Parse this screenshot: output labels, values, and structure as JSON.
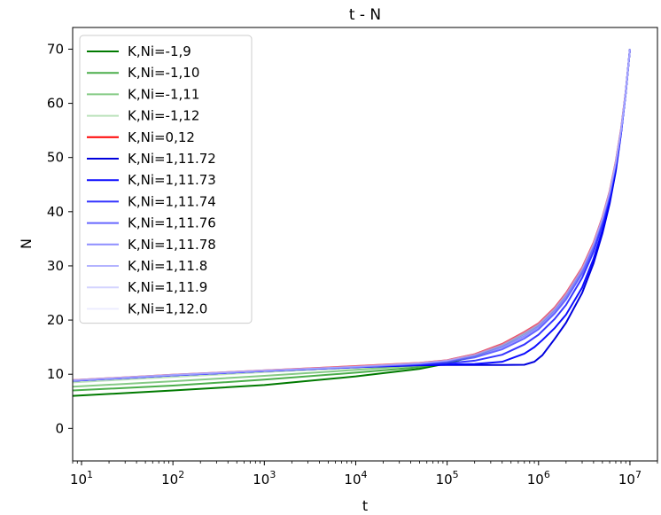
{
  "chart_data": {
    "type": "line",
    "title": "t - N",
    "xlabel": "t",
    "ylabel": "N",
    "xscale": "log",
    "xlim": [
      8,
      20000000
    ],
    "ylim": [
      -6,
      74
    ],
    "x_ticks": [
      10,
      100,
      1000,
      10000,
      100000,
      1000000,
      10000000
    ],
    "x_tick_exponents": [
      "1",
      "2",
      "3",
      "4",
      "5",
      "6",
      "7"
    ],
    "y_ticks": [
      0,
      10,
      20,
      30,
      40,
      50,
      60,
      70
    ],
    "legend_position": "upper-left",
    "grid": false,
    "series": [
      {
        "name": "K,Ni=-1,9",
        "color": "#007a00",
        "opacity": 1.0,
        "x": [
          8,
          100,
          1000,
          10000,
          50000,
          100000,
          200000,
          400000,
          700000,
          1000000,
          1500000,
          2000000,
          3000000,
          4000000,
          5000000,
          6000000,
          7000000,
          8000000,
          9000000,
          10000000
        ],
        "y": [
          6.0,
          7.0,
          8.0,
          9.6,
          11.0,
          12.0,
          13.4,
          15.3,
          17.5,
          19.1,
          22.0,
          24.7,
          29.4,
          34.0,
          38.7,
          43.5,
          49.0,
          55.0,
          62.0,
          70.0
        ]
      },
      {
        "name": "K,Ni=-1,10",
        "color": "#2ca02c",
        "opacity": 0.85,
        "x": [
          8,
          100,
          1000,
          10000,
          50000,
          100000,
          200000,
          400000,
          700000,
          1000000,
          1500000,
          2000000,
          3000000,
          4000000,
          5000000,
          6000000,
          7000000,
          8000000,
          9000000,
          10000000
        ],
        "y": [
          7.0,
          7.9,
          9.0,
          10.3,
          11.3,
          12.1,
          13.4,
          15.3,
          17.5,
          19.1,
          22.0,
          24.7,
          29.4,
          34.0,
          38.7,
          43.5,
          49.0,
          55.0,
          62.0,
          70.0
        ]
      },
      {
        "name": "K,Ni=-1,11",
        "color": "#5cb85c",
        "opacity": 0.75,
        "x": [
          8,
          100,
          1000,
          10000,
          50000,
          100000,
          200000,
          400000,
          700000,
          1000000,
          1500000,
          2000000,
          3000000,
          4000000,
          5000000,
          6000000,
          7000000,
          8000000,
          9000000,
          10000000
        ],
        "y": [
          7.7,
          8.7,
          9.7,
          10.8,
          11.6,
          12.2,
          13.4,
          15.3,
          17.5,
          19.1,
          22.0,
          24.7,
          29.4,
          34.0,
          38.7,
          43.5,
          49.0,
          55.0,
          62.0,
          70.0
        ]
      },
      {
        "name": "K,Ni=-1,12",
        "color": "#9fd69f",
        "opacity": 0.7,
        "x": [
          8,
          100,
          1000,
          10000,
          50000,
          100000,
          200000,
          400000,
          700000,
          1000000,
          1500000,
          2000000,
          3000000,
          4000000,
          5000000,
          6000000,
          7000000,
          8000000,
          9000000,
          10000000
        ],
        "y": [
          8.5,
          9.5,
          10.4,
          11.2,
          11.8,
          12.3,
          13.4,
          15.3,
          17.5,
          19.1,
          22.0,
          24.7,
          29.4,
          34.0,
          38.7,
          43.5,
          49.0,
          55.0,
          62.0,
          70.0
        ]
      },
      {
        "name": "K,Ni=0,12",
        "color": "#ff0000",
        "opacity": 1.0,
        "x": [
          8,
          100,
          1000,
          10000,
          50000,
          100000,
          200000,
          400000,
          700000,
          1000000,
          1500000,
          2000000,
          3000000,
          4000000,
          5000000,
          6000000,
          7000000,
          8000000,
          9000000,
          10000000
        ],
        "y": [
          8.9,
          9.9,
          10.7,
          11.5,
          12.1,
          12.6,
          13.7,
          15.6,
          17.8,
          19.4,
          22.3,
          25.0,
          29.7,
          34.3,
          39.0,
          43.8,
          49.3,
          55.3,
          62.2,
          70.0
        ]
      },
      {
        "name": "K,Ni=1,11.72",
        "color": "#0000dd",
        "opacity": 1.0,
        "x": [
          8,
          100,
          1000,
          10000,
          50000,
          100000,
          200000,
          400000,
          700000,
          900000,
          1100000,
          1500000,
          2000000,
          3000000,
          4000000,
          5000000,
          6000000,
          7000000,
          8000000,
          9000000,
          10000000
        ],
        "y": [
          8.8,
          9.8,
          10.6,
          11.3,
          11.65,
          11.7,
          11.7,
          11.7,
          11.75,
          12.3,
          13.5,
          16.5,
          19.5,
          25.0,
          30.5,
          36.0,
          41.5,
          47.5,
          54.5,
          62.0,
          70.0
        ]
      },
      {
        "name": "K,Ni=1,11.73",
        "color": "#0000ff",
        "opacity": 0.95,
        "x": [
          8,
          100,
          1000,
          10000,
          50000,
          100000,
          200000,
          400000,
          700000,
          900000,
          1100000,
          1500000,
          2000000,
          3000000,
          4000000,
          5000000,
          6000000,
          7000000,
          8000000,
          9000000,
          10000000
        ],
        "y": [
          8.8,
          9.8,
          10.6,
          11.3,
          11.7,
          11.8,
          11.9,
          12.3,
          13.8,
          15.0,
          16.3,
          18.5,
          21.0,
          26.0,
          31.3,
          36.6,
          42.0,
          47.9,
          54.7,
          62.1,
          70.0
        ]
      },
      {
        "name": "K,Ni=1,11.74",
        "color": "#1f1fff",
        "opacity": 0.9,
        "x": [
          8,
          100,
          1000,
          10000,
          50000,
          100000,
          200000,
          400000,
          700000,
          1000000,
          1500000,
          2000000,
          3000000,
          4000000,
          5000000,
          6000000,
          7000000,
          8000000,
          9000000,
          10000000
        ],
        "y": [
          8.8,
          9.8,
          10.6,
          11.3,
          11.8,
          12.0,
          12.5,
          13.6,
          15.5,
          17.3,
          20.2,
          22.8,
          27.8,
          32.6,
          37.6,
          42.6,
          48.3,
          54.6,
          61.9,
          70.0
        ]
      },
      {
        "name": "K,Ni=1,11.76",
        "color": "#4040ff",
        "opacity": 0.8,
        "x": [
          8,
          100,
          1000,
          10000,
          50000,
          100000,
          200000,
          400000,
          700000,
          1000000,
          1500000,
          2000000,
          3000000,
          4000000,
          5000000,
          6000000,
          7000000,
          8000000,
          9000000,
          10000000
        ],
        "y": [
          8.8,
          9.8,
          10.6,
          11.3,
          11.9,
          12.3,
          13.1,
          14.6,
          16.6,
          18.3,
          21.2,
          23.8,
          28.6,
          33.3,
          38.2,
          43.1,
          48.7,
          54.8,
          62.0,
          70.0
        ]
      },
      {
        "name": "K,Ni=1,11.78",
        "color": "#6060ff",
        "opacity": 0.7,
        "x": [
          8,
          100,
          1000,
          10000,
          50000,
          100000,
          200000,
          400000,
          700000,
          1000000,
          1500000,
          2000000,
          3000000,
          4000000,
          5000000,
          6000000,
          7000000,
          8000000,
          9000000,
          10000000
        ],
        "y": [
          8.8,
          9.8,
          10.6,
          11.3,
          11.95,
          12.4,
          13.3,
          15.0,
          17.0,
          18.7,
          21.6,
          24.2,
          29.0,
          33.7,
          38.5,
          43.3,
          48.9,
          54.9,
          62.0,
          70.0
        ]
      },
      {
        "name": "K,Ni=1,11.8",
        "color": "#8080ff",
        "opacity": 0.6,
        "x": [
          8,
          100,
          1000,
          10000,
          50000,
          100000,
          200000,
          400000,
          700000,
          1000000,
          1500000,
          2000000,
          3000000,
          4000000,
          5000000,
          6000000,
          7000000,
          8000000,
          9000000,
          10000000
        ],
        "y": [
          8.85,
          9.85,
          10.65,
          11.35,
          12.0,
          12.5,
          13.5,
          15.2,
          17.3,
          19.0,
          21.9,
          24.5,
          29.2,
          33.9,
          38.7,
          43.5,
          49.0,
          55.0,
          62.0,
          70.0
        ]
      },
      {
        "name": "K,Ni=1,11.9",
        "color": "#a8a8ff",
        "opacity": 0.5,
        "x": [
          8,
          100,
          1000,
          10000,
          50000,
          100000,
          200000,
          400000,
          700000,
          1000000,
          1500000,
          2000000,
          3000000,
          4000000,
          5000000,
          6000000,
          7000000,
          8000000,
          9000000,
          10000000
        ],
        "y": [
          8.9,
          9.9,
          10.7,
          11.4,
          12.05,
          12.55,
          13.6,
          15.4,
          17.6,
          19.2,
          22.1,
          24.8,
          29.5,
          34.1,
          38.9,
          43.7,
          49.2,
          55.2,
          62.1,
          70.0
        ]
      },
      {
        "name": "K,Ni=1,12.0",
        "color": "#d0d0ff",
        "opacity": 0.4,
        "x": [
          8,
          100,
          1000,
          10000,
          50000,
          100000,
          200000,
          400000,
          700000,
          1000000,
          1500000,
          2000000,
          3000000,
          4000000,
          5000000,
          6000000,
          7000000,
          8000000,
          9000000,
          10000000
        ],
        "y": [
          8.9,
          9.9,
          10.7,
          11.5,
          12.1,
          12.6,
          13.7,
          15.6,
          17.8,
          19.4,
          22.3,
          25.0,
          29.7,
          34.3,
          39.0,
          43.8,
          49.3,
          55.3,
          62.2,
          70.0
        ]
      }
    ]
  }
}
